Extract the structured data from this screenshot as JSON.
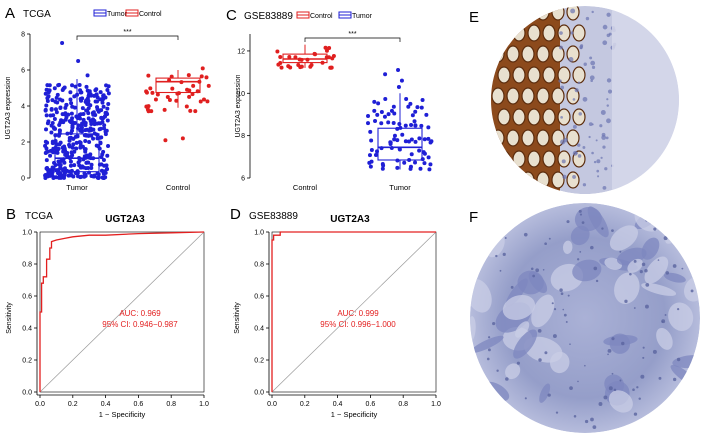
{
  "panels": {
    "A": {
      "letter": "A",
      "dataset": "TCGA",
      "legend": [
        "Tumor",
        "Control"
      ],
      "ylabel": "UGT2A3 expression",
      "sig": "***"
    },
    "C": {
      "letter": "C",
      "dataset": "GSE83889",
      "legend": [
        "Control",
        "Tumor"
      ],
      "ylabel": "UGT2A3 expression",
      "sig": "***"
    },
    "B": {
      "letter": "B",
      "dataset": "TCGA",
      "title": "UGT2A3",
      "auc": "AUC: 0.969",
      "ci": "95% CI: 0.946−0.987"
    },
    "D": {
      "letter": "D",
      "dataset": "GSE83889",
      "title": "UGT2A3",
      "auc": "AUC: 0.999",
      "ci": "95% CI: 0.996−1.000"
    },
    "E": {
      "letter": "E"
    },
    "F": {
      "letter": "F"
    }
  },
  "colors": {
    "tumor": "#1f1fd6",
    "control": "#e01f1f",
    "roc": "#e32020",
    "diag": "#9a9a9a",
    "stainBrown": "#7a3c12",
    "stainBlue": "#9da6cf"
  },
  "chart_data": [
    {
      "id": "A",
      "type": "box-scatter",
      "categories": [
        "Tumor",
        "Control"
      ],
      "ylim": [
        0,
        8
      ],
      "yticks": [
        0,
        2,
        4,
        6,
        8
      ],
      "boxes": [
        {
          "name": "Tumor",
          "q1": 0.35,
          "median": 1.1,
          "q3": 2.45,
          "wlo": 0.0,
          "whi": 5.5,
          "n": 420,
          "min": 0.0,
          "max": 5.2,
          "outliers": [
            5.7,
            6.5,
            7.5
          ]
        },
        {
          "name": "Control",
          "q1": 4.75,
          "median": 5.35,
          "q3": 5.55,
          "wlo": 3.9,
          "whi": 6.0,
          "n": 41,
          "min": 3.7,
          "max": 6.2,
          "outliers": [
            2.2,
            2.1
          ]
        }
      ]
    },
    {
      "id": "C",
      "type": "box-scatter",
      "categories": [
        "Control",
        "Tumor"
      ],
      "ylim": [
        6,
        12.8
      ],
      "yticks": [
        6,
        8,
        10,
        12
      ],
      "boxes": [
        {
          "name": "Control",
          "q1": 11.45,
          "median": 11.62,
          "q3": 11.85,
          "wlo": 11.2,
          "whi": 12.3,
          "n": 30,
          "min": 11.2,
          "max": 12.2,
          "outliers": []
        },
        {
          "name": "Tumor",
          "q1": 6.85,
          "median": 7.45,
          "q3": 8.35,
          "wlo": 6.4,
          "whi": 10.0,
          "n": 85,
          "min": 6.4,
          "max": 9.8,
          "outliers": [
            10.3,
            10.6,
            10.9,
            11.1
          ]
        }
      ]
    },
    {
      "id": "B",
      "type": "line",
      "title": "UGT2A3",
      "xlabel": "1 − Specificity",
      "ylabel": "Sensitivity",
      "xlim": [
        0,
        1
      ],
      "ylim": [
        0,
        1
      ],
      "ticks": [
        0.0,
        0.2,
        0.4,
        0.6,
        0.8,
        1.0
      ],
      "x": [
        0,
        0,
        0.01,
        0.01,
        0.02,
        0.02,
        0.04,
        0.04,
        0.06,
        0.06,
        0.07,
        0.07,
        0.1,
        0.15,
        0.2,
        0.3,
        0.4,
        0.6,
        0.8,
        1.0
      ],
      "y": [
        0,
        0.5,
        0.5,
        0.68,
        0.68,
        0.72,
        0.72,
        0.83,
        0.83,
        0.9,
        0.9,
        0.94,
        0.95,
        0.96,
        0.97,
        0.98,
        0.98,
        0.99,
        0.995,
        1.0
      ]
    },
    {
      "id": "D",
      "type": "line",
      "title": "UGT2A3",
      "xlabel": "1 − Specificity",
      "ylabel": "Sensitivity",
      "xlim": [
        0,
        1
      ],
      "ylim": [
        0,
        1
      ],
      "ticks": [
        0.0,
        0.2,
        0.4,
        0.6,
        0.8,
        1.0
      ],
      "x": [
        0,
        0,
        0.01,
        0.01,
        0.05,
        0.05,
        1.0
      ],
      "y": [
        0,
        0.95,
        0.95,
        0.98,
        0.98,
        1.0,
        1.0
      ]
    }
  ]
}
